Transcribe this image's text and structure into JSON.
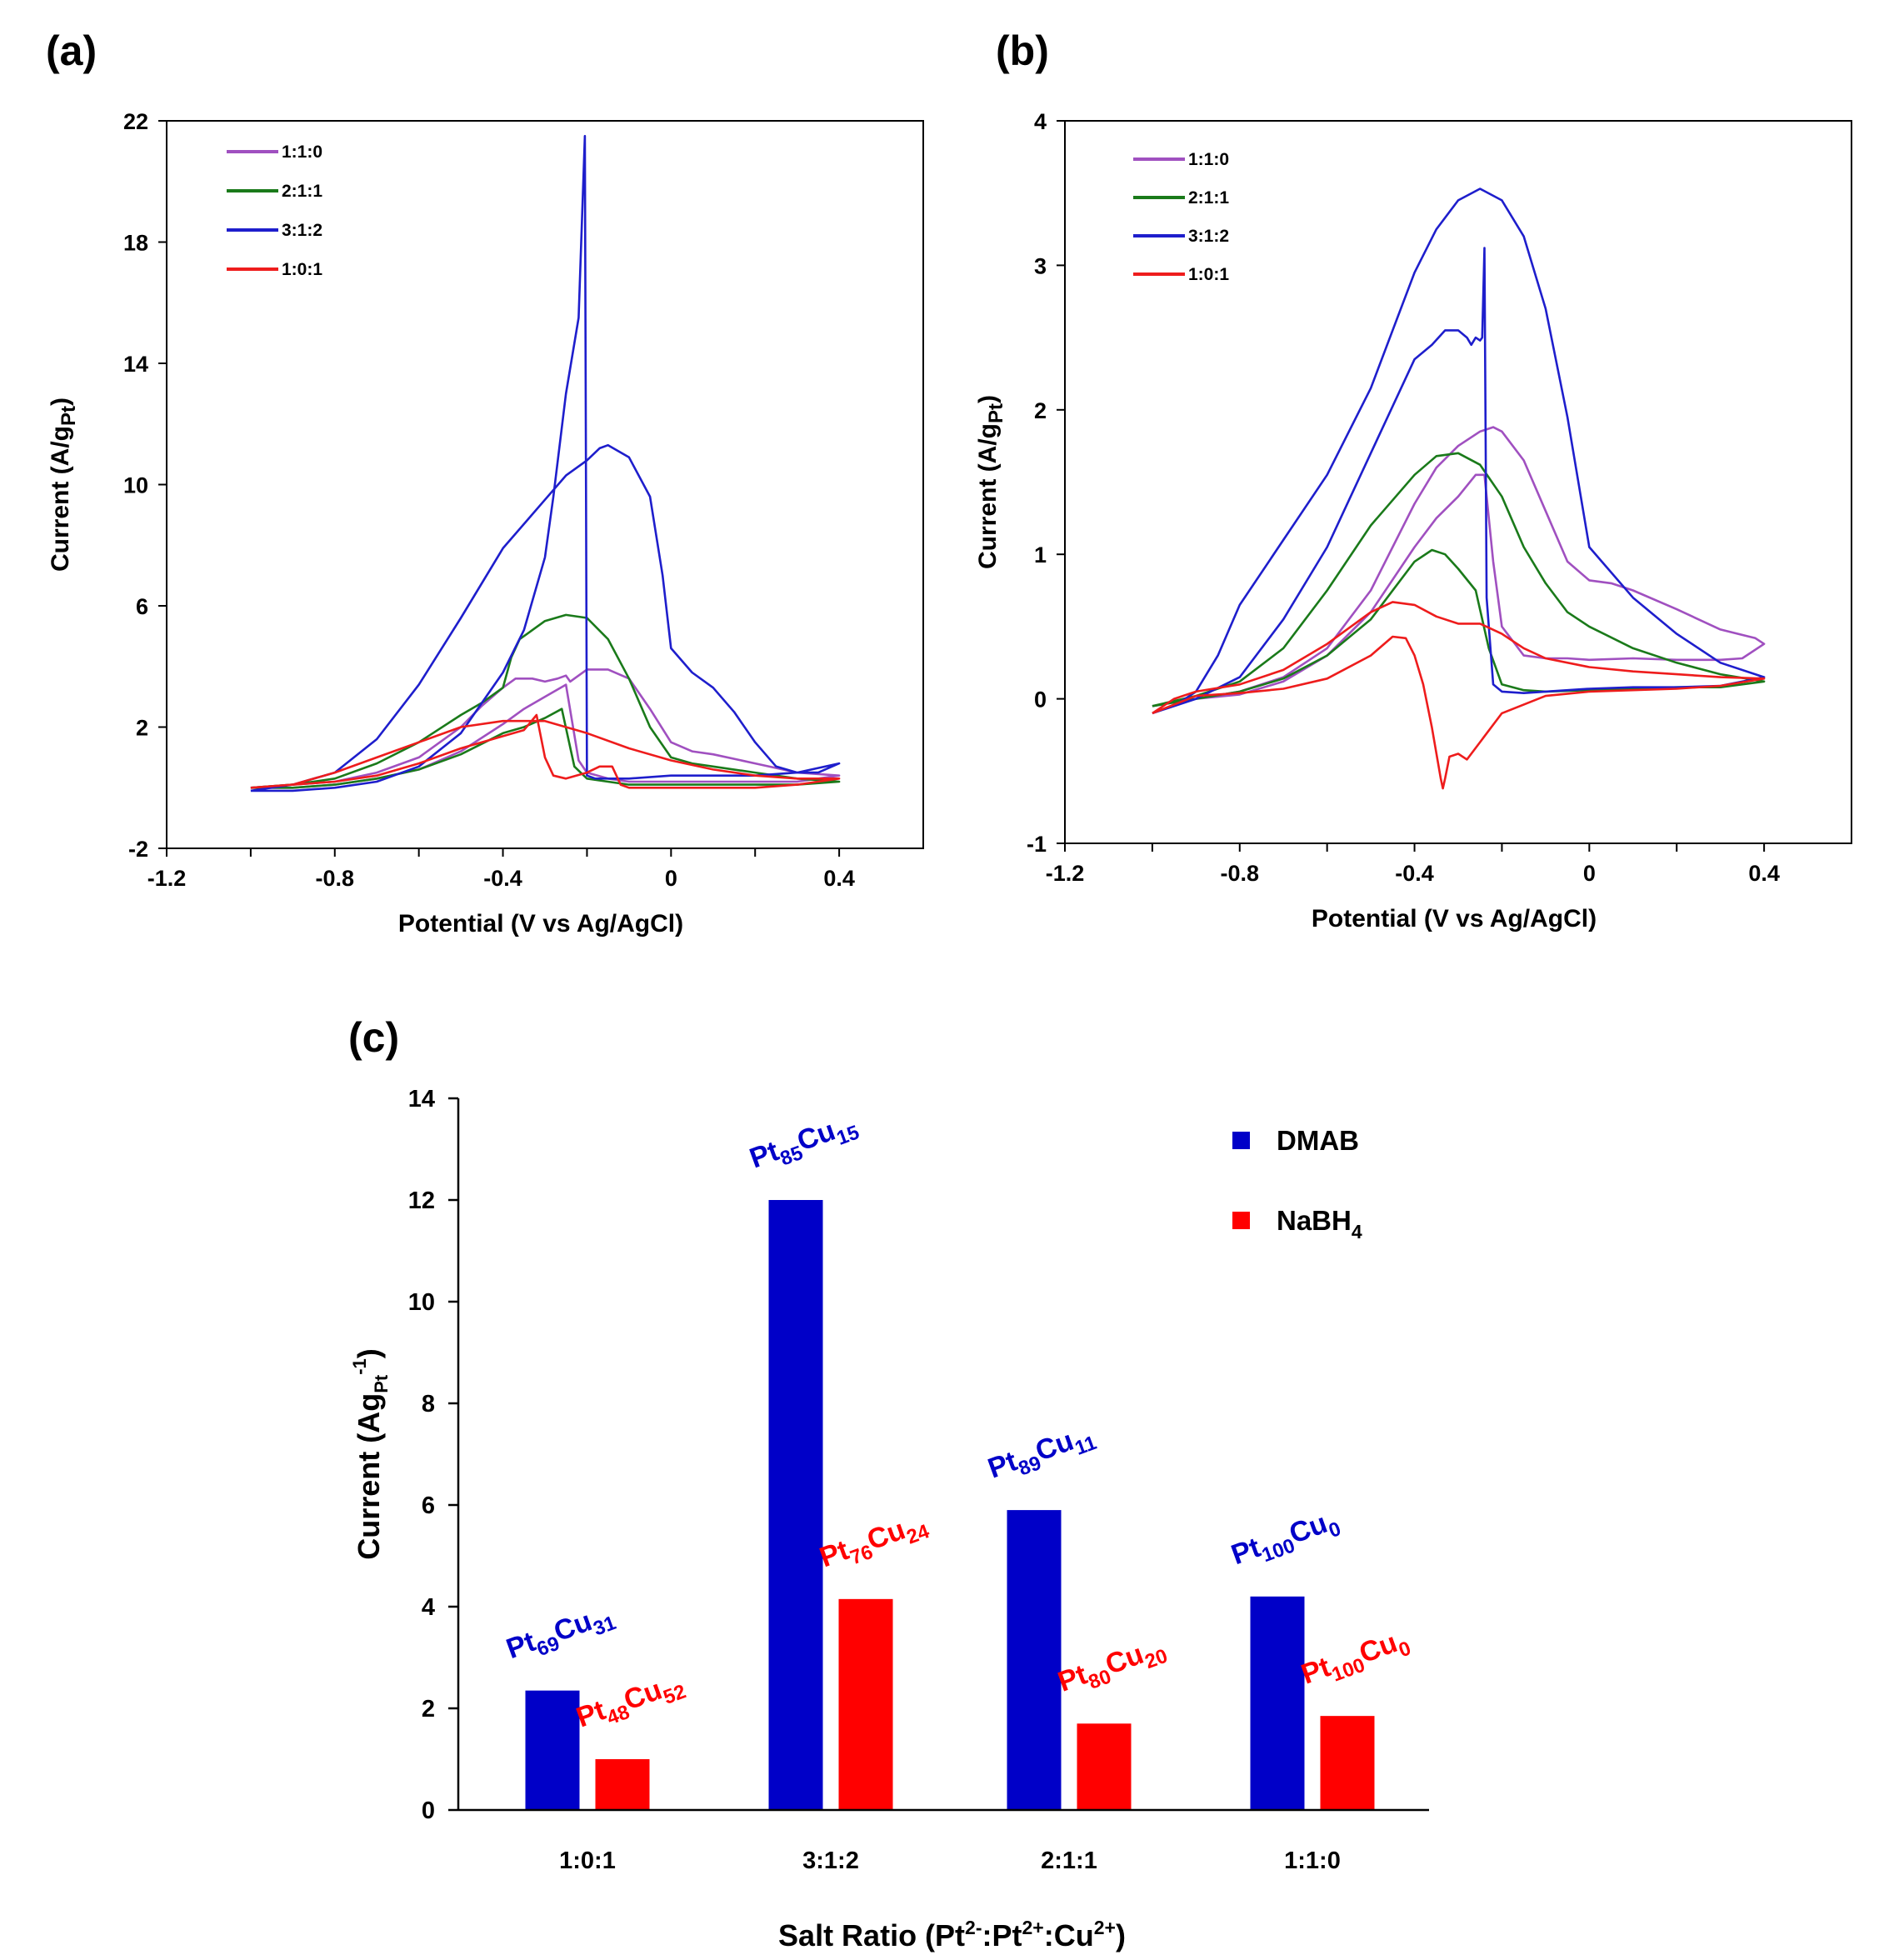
{
  "colors": {
    "ratio_1_1_0": "#a050c0",
    "ratio_2_1_1": "#1a7a1a",
    "ratio_3_1_2": "#1e1ecc",
    "ratio_1_0_1": "#ee1c1c",
    "dmab": "#0000c8",
    "nabh4": "#ff0000",
    "axis": "#000000"
  },
  "chart_data": [
    {
      "id": "a",
      "type": "line",
      "panel_label": "(a)",
      "xlabel": "Potential (V vs Ag/AgCl)",
      "ylabel_main": "Current (A/g",
      "ylabel_sub": "Pt",
      "ylabel_end": ")",
      "xlim": [
        -1.2,
        0.6
      ],
      "ylim": [
        -2,
        22
      ],
      "xticks": [
        "-1.2",
        "-0.8",
        "-0.4",
        "0",
        "0.4"
      ],
      "yticks": [
        "-2",
        "2",
        "6",
        "10",
        "14",
        "18",
        "22"
      ],
      "legend": [
        "1:1:0",
        "2:1:1",
        "3:1:2",
        "1:0:1"
      ],
      "series": [
        {
          "name": "1:1:0",
          "color_key": "ratio_1_1_0",
          "x": [
            -1.0,
            -0.9,
            -0.8,
            -0.7,
            -0.6,
            -0.5,
            -0.45,
            -0.4,
            -0.37,
            -0.33,
            -0.3,
            -0.27,
            -0.25,
            -0.24,
            -0.23,
            -0.2,
            -0.15,
            -0.1,
            -0.05,
            0.0,
            0.05,
            0.1,
            0.2,
            0.3,
            0.4,
            0.3,
            0.2,
            0.1,
            0.0,
            -0.1,
            -0.15,
            -0.2,
            -0.22,
            -0.25,
            -0.3,
            -0.35,
            -0.4,
            -0.5,
            -0.6,
            -0.7,
            -0.8,
            -0.9,
            -1.0
          ],
          "y": [
            0.0,
            0.1,
            0.2,
            0.5,
            1.0,
            2.0,
            2.7,
            3.3,
            3.6,
            3.6,
            3.5,
            3.6,
            3.7,
            3.5,
            3.6,
            3.9,
            3.9,
            3.6,
            2.6,
            1.5,
            1.2,
            1.1,
            0.8,
            0.5,
            0.4,
            0.2,
            0.2,
            0.2,
            0.2,
            0.2,
            0.3,
            0.5,
            0.9,
            3.4,
            3.0,
            2.6,
            2.1,
            1.2,
            0.6,
            0.3,
            0.1,
            0.0,
            0.0
          ]
        },
        {
          "name": "2:1:1",
          "color_key": "ratio_2_1_1",
          "x": [
            -1.0,
            -0.9,
            -0.8,
            -0.7,
            -0.6,
            -0.5,
            -0.45,
            -0.4,
            -0.38,
            -0.36,
            -0.33,
            -0.3,
            -0.25,
            -0.2,
            -0.15,
            -0.1,
            -0.05,
            0.0,
            0.05,
            0.1,
            0.2,
            0.3,
            0.4,
            0.3,
            0.2,
            0.1,
            0.0,
            -0.1,
            -0.15,
            -0.2,
            -0.23,
            -0.26,
            -0.3,
            -0.35,
            -0.4,
            -0.5,
            -0.6,
            -0.7,
            -0.8,
            -0.9,
            -1.0
          ],
          "y": [
            0.0,
            0.1,
            0.3,
            0.8,
            1.5,
            2.4,
            2.8,
            3.3,
            4.3,
            4.9,
            5.2,
            5.5,
            5.7,
            5.6,
            4.9,
            3.6,
            2.0,
            1.0,
            0.8,
            0.7,
            0.5,
            0.3,
            0.2,
            0.1,
            0.1,
            0.1,
            0.1,
            0.1,
            0.2,
            0.3,
            0.7,
            2.6,
            2.3,
            2.0,
            1.8,
            1.1,
            0.6,
            0.3,
            0.1,
            0.0,
            0.0
          ]
        },
        {
          "name": "3:1:2",
          "color_key": "ratio_3_1_2",
          "x": [
            -1.0,
            -0.9,
            -0.8,
            -0.7,
            -0.6,
            -0.5,
            -0.4,
            -0.3,
            -0.25,
            -0.2,
            -0.17,
            -0.15,
            -0.1,
            -0.05,
            -0.02,
            0.0,
            0.05,
            0.1,
            0.15,
            0.2,
            0.25,
            0.3,
            0.35,
            0.4,
            0.3,
            0.2,
            0.1,
            0.0,
            -0.1,
            -0.15,
            -0.18,
            -0.2,
            -0.205,
            -0.21,
            -0.215,
            -0.22,
            -0.25,
            -0.28,
            -0.3,
            -0.35,
            -0.4,
            -0.5,
            -0.6,
            -0.7,
            -0.8,
            -0.9,
            -1.0
          ],
          "y": [
            -0.1,
            0.1,
            0.5,
            1.6,
            3.4,
            5.6,
            7.9,
            9.5,
            10.3,
            10.8,
            11.2,
            11.3,
            10.9,
            9.6,
            7.0,
            4.6,
            3.8,
            3.3,
            2.5,
            1.5,
            0.7,
            0.5,
            0.5,
            0.8,
            0.5,
            0.4,
            0.4,
            0.4,
            0.3,
            0.3,
            0.3,
            0.4,
            21.5,
            19.5,
            17.5,
            15.5,
            13.0,
            9.6,
            7.6,
            5.2,
            3.8,
            1.8,
            0.7,
            0.2,
            0.0,
            -0.1,
            -0.1
          ]
        },
        {
          "name": "1:0:1",
          "color_key": "ratio_1_0_1",
          "x": [
            -1.0,
            -0.9,
            -0.8,
            -0.7,
            -0.6,
            -0.5,
            -0.4,
            -0.35,
            -0.3,
            -0.25,
            -0.2,
            -0.1,
            0.0,
            0.1,
            0.2,
            0.3,
            0.4,
            0.3,
            0.2,
            0.1,
            0.0,
            -0.1,
            -0.12,
            -0.14,
            -0.17,
            -0.2,
            -0.25,
            -0.28,
            -0.3,
            -0.32,
            -0.35,
            -0.4,
            -0.5,
            -0.6,
            -0.7,
            -0.8,
            -0.9,
            -1.0
          ],
          "y": [
            0.0,
            0.1,
            0.5,
            1.0,
            1.5,
            2.0,
            2.2,
            2.2,
            2.2,
            2.0,
            1.8,
            1.3,
            0.9,
            0.6,
            0.4,
            0.3,
            0.3,
            0.1,
            0.0,
            0.0,
            0.0,
            0.0,
            0.1,
            0.7,
            0.7,
            0.5,
            0.3,
            0.4,
            1.0,
            2.4,
            1.9,
            1.7,
            1.3,
            0.8,
            0.4,
            0.2,
            0.1,
            0.0
          ]
        }
      ]
    },
    {
      "id": "b",
      "type": "line",
      "panel_label": "(b)",
      "xlabel": "Potential (V vs Ag/AgCl)",
      "ylabel_main": "Current (A/g",
      "ylabel_sub": "Pt",
      "ylabel_end": ")",
      "xlim": [
        -1.2,
        0.6
      ],
      "ylim": [
        -1,
        4
      ],
      "xticks": [
        "-1.2",
        "-0.8",
        "-0.4",
        "0",
        "0.4"
      ],
      "yticks": [
        "-1",
        "0",
        "1",
        "2",
        "3",
        "4"
      ],
      "legend": [
        "1:1:0",
        "2:1:1",
        "3:1:2",
        "1:0:1"
      ],
      "series": [
        {
          "name": "1:1:0",
          "color_key": "ratio_1_1_0",
          "x": [
            -1.0,
            -0.9,
            -0.8,
            -0.7,
            -0.6,
            -0.5,
            -0.45,
            -0.4,
            -0.35,
            -0.3,
            -0.25,
            -0.22,
            -0.2,
            -0.15,
            -0.1,
            -0.05,
            0.0,
            0.05,
            0.1,
            0.2,
            0.3,
            0.38,
            0.4,
            0.35,
            0.3,
            0.2,
            0.1,
            0.0,
            -0.05,
            -0.1,
            -0.15,
            -0.2,
            -0.22,
            -0.24,
            -0.26,
            -0.3,
            -0.35,
            -0.4,
            -0.5,
            -0.6,
            -0.7,
            -0.8,
            -0.9,
            -1.0
          ],
          "y": [
            -0.05,
            0.0,
            0.05,
            0.15,
            0.35,
            0.75,
            1.05,
            1.35,
            1.6,
            1.75,
            1.85,
            1.88,
            1.85,
            1.65,
            1.3,
            0.95,
            0.82,
            0.8,
            0.75,
            0.62,
            0.48,
            0.42,
            0.38,
            0.28,
            0.27,
            0.27,
            0.28,
            0.27,
            0.28,
            0.28,
            0.3,
            0.5,
            0.95,
            1.55,
            1.55,
            1.4,
            1.25,
            1.05,
            0.6,
            0.3,
            0.12,
            0.03,
            0.0,
            -0.05
          ]
        },
        {
          "name": "2:1:1",
          "color_key": "ratio_2_1_1",
          "x": [
            -1.0,
            -0.9,
            -0.8,
            -0.7,
            -0.6,
            -0.5,
            -0.4,
            -0.35,
            -0.3,
            -0.25,
            -0.2,
            -0.15,
            -0.1,
            -0.05,
            0.0,
            0.1,
            0.2,
            0.3,
            0.4,
            0.3,
            0.2,
            0.1,
            0.0,
            -0.1,
            -0.15,
            -0.2,
            -0.23,
            -0.26,
            -0.3,
            -0.33,
            -0.36,
            -0.4,
            -0.5,
            -0.6,
            -0.7,
            -0.8,
            -0.9,
            -1.0
          ],
          "y": [
            -0.05,
            0.02,
            0.12,
            0.35,
            0.75,
            1.2,
            1.55,
            1.68,
            1.7,
            1.62,
            1.4,
            1.05,
            0.8,
            0.6,
            0.5,
            0.35,
            0.25,
            0.17,
            0.12,
            0.08,
            0.08,
            0.07,
            0.06,
            0.05,
            0.06,
            0.1,
            0.35,
            0.75,
            0.9,
            1.0,
            1.03,
            0.95,
            0.55,
            0.3,
            0.14,
            0.05,
            0.0,
            -0.05
          ]
        },
        {
          "name": "3:1:2",
          "color_key": "ratio_3_1_2",
          "x": [
            -1.0,
            -0.95,
            -0.9,
            -0.85,
            -0.8,
            -0.7,
            -0.6,
            -0.5,
            -0.45,
            -0.4,
            -0.35,
            -0.3,
            -0.25,
            -0.2,
            -0.15,
            -0.1,
            -0.05,
            0.0,
            0.1,
            0.2,
            0.3,
            0.4,
            0.3,
            0.2,
            0.1,
            0.0,
            -0.1,
            -0.15,
            -0.2,
            -0.22,
            -0.235,
            -0.24,
            -0.245,
            -0.25,
            -0.26,
            -0.27,
            -0.28,
            -0.3,
            -0.33,
            -0.36,
            -0.4,
            -0.5,
            -0.6,
            -0.7,
            -0.8,
            -0.9,
            -1.0
          ],
          "y": [
            -0.1,
            -0.05,
            0.05,
            0.3,
            0.65,
            1.1,
            1.55,
            2.15,
            2.55,
            2.95,
            3.25,
            3.45,
            3.53,
            3.45,
            3.2,
            2.7,
            1.95,
            1.05,
            0.7,
            0.45,
            0.25,
            0.15,
            0.09,
            0.08,
            0.08,
            0.07,
            0.05,
            0.04,
            0.05,
            0.1,
            0.7,
            3.12,
            2.5,
            2.48,
            2.5,
            2.45,
            2.5,
            2.55,
            2.55,
            2.45,
            2.35,
            1.7,
            1.05,
            0.55,
            0.15,
            0.0,
            -0.1
          ]
        },
        {
          "name": "1:0:1",
          "color_key": "ratio_1_0_1",
          "x": [
            -1.0,
            -0.95,
            -0.9,
            -0.8,
            -0.7,
            -0.6,
            -0.5,
            -0.45,
            -0.4,
            -0.35,
            -0.3,
            -0.25,
            -0.2,
            -0.15,
            -0.1,
            0.0,
            0.1,
            0.2,
            0.3,
            0.4,
            0.3,
            0.2,
            0.1,
            0.0,
            -0.1,
            -0.2,
            -0.25,
            -0.28,
            -0.3,
            -0.32,
            -0.33,
            -0.335,
            -0.34,
            -0.36,
            -0.38,
            -0.4,
            -0.42,
            -0.45,
            -0.5,
            -0.6,
            -0.7,
            -0.8,
            -0.9,
            -1.0
          ],
          "y": [
            -0.1,
            0.0,
            0.05,
            0.1,
            0.2,
            0.38,
            0.6,
            0.67,
            0.65,
            0.57,
            0.52,
            0.52,
            0.45,
            0.35,
            0.28,
            0.22,
            0.19,
            0.17,
            0.15,
            0.14,
            0.09,
            0.07,
            0.06,
            0.05,
            0.02,
            -0.1,
            -0.3,
            -0.42,
            -0.38,
            -0.4,
            -0.55,
            -0.62,
            -0.55,
            -0.2,
            0.1,
            0.3,
            0.42,
            0.43,
            0.3,
            0.14,
            0.07,
            0.04,
            0.02,
            -0.1
          ]
        }
      ]
    },
    {
      "id": "c",
      "type": "bar",
      "panel_label": "(c)",
      "xlabel_main": "Salt Ratio (Pt",
      "xlabel_sup1": "2-",
      "xlabel_mid1": ":Pt",
      "xlabel_sup2": "2+",
      "xlabel_mid2": ":Cu",
      "xlabel_sup3": "2+",
      "xlabel_end": ")",
      "ylabel_main": "Current (Ag",
      "ylabel_sub": "Pt",
      "ylabel_sup": "-1",
      "ylabel_end": ")",
      "ylim": [
        0,
        14
      ],
      "yticks": [
        "0",
        "2",
        "4",
        "6",
        "8",
        "10",
        "12",
        "14"
      ],
      "categories": [
        "1:0:1",
        "3:1:2",
        "2:1:1",
        "1:1:0"
      ],
      "series": [
        {
          "name": "DMAB",
          "color_key": "dmab",
          "values": [
            2.35,
            12.0,
            5.9,
            4.2
          ]
        },
        {
          "name": "NaBH",
          "name_sub": "4",
          "color_key": "nabh4",
          "values": [
            1.0,
            4.15,
            1.7,
            1.85
          ]
        }
      ],
      "compositions": [
        {
          "dmab": {
            "pt": "69",
            "cu": "31"
          },
          "nabh4": {
            "pt": "48",
            "cu": "52"
          }
        },
        {
          "dmab": {
            "pt": "85",
            "cu": "15"
          },
          "nabh4": {
            "pt": "76",
            "cu": "24"
          }
        },
        {
          "dmab": {
            "pt": "89",
            "cu": "11"
          },
          "nabh4": {
            "pt": "80",
            "cu": "20"
          }
        },
        {
          "dmab": {
            "pt": "100",
            "cu": "0"
          },
          "nabh4": {
            "pt": "100",
            "cu": "0"
          }
        }
      ],
      "element_symbols": {
        "pt": "Pt",
        "cu": "Cu"
      }
    }
  ]
}
